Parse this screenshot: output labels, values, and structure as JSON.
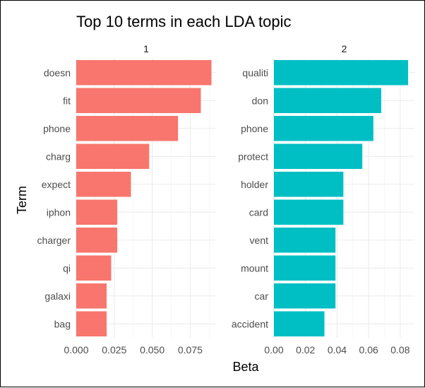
{
  "chart_data": {
    "type": "bar",
    "orientation": "horizontal",
    "title": "Top 10 terms in each LDA topic",
    "xlabel": "Beta",
    "ylabel": "Term",
    "grid": true,
    "legend": "none",
    "panels": [
      {
        "name": "1",
        "color": "#F8766D",
        "xlim": [
          0,
          0.092
        ],
        "x_ticks": [
          "0.000",
          "0.025",
          "0.050",
          "0.075"
        ],
        "x_tick_values": [
          0.0,
          0.025,
          0.05,
          0.075
        ],
        "categories": [
          "doesn",
          "fit",
          "phone",
          "charg",
          "expect",
          "iphon",
          "charger",
          "qi",
          "galaxi",
          "bag"
        ],
        "values": [
          0.089,
          0.082,
          0.067,
          0.048,
          0.036,
          0.027,
          0.027,
          0.023,
          0.02,
          0.02
        ]
      },
      {
        "name": "2",
        "color": "#00BFC4",
        "xlim": [
          0,
          0.089
        ],
        "x_ticks": [
          "0.00",
          "0.02",
          "0.04",
          "0.06",
          "0.08"
        ],
        "x_tick_values": [
          0.0,
          0.02,
          0.04,
          0.06,
          0.08
        ],
        "categories": [
          "qualiti",
          "don",
          "phone",
          "protect",
          "holder",
          "card",
          "vent",
          "mount",
          "car",
          "accident"
        ],
        "values": [
          0.085,
          0.068,
          0.063,
          0.056,
          0.044,
          0.044,
          0.039,
          0.039,
          0.039,
          0.032
        ]
      }
    ]
  }
}
